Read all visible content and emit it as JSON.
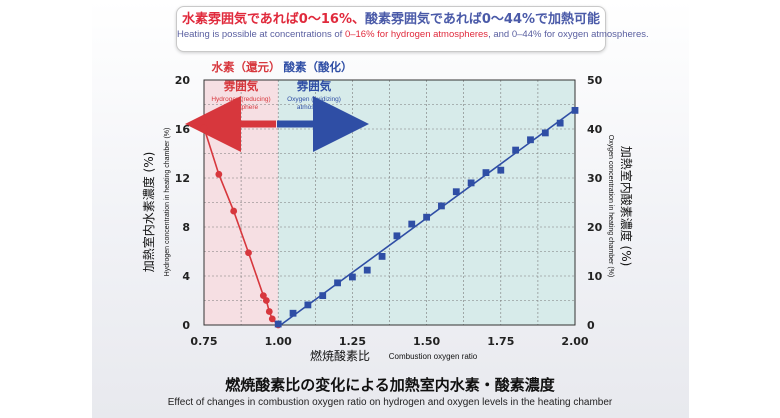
{
  "banner": {
    "line1_red": "水素雰囲気であれば0〜16%、",
    "line1_blue": "酸素雰囲気であれば0〜44%",
    "line1_tail": "で加熱可能",
    "line2_a": "Heating is possible at concentrations of ",
    "line2_b": "0–16% for hydrogen atmospheres",
    "line2_c": ", and ",
    "line2_d": "0–44% for oxygen atmospheres",
    "line2_e": "."
  },
  "footer": {
    "title_jp": "燃焼酸素比の変化による加熱室内水素・酸素濃度",
    "title_en": "Effect of changes in combustion oxygen ratio on hydrogen and oxygen levels in the heating chamber"
  },
  "colors": {
    "hydrogen": "#d7373d",
    "oxygen": "#2f4ea5",
    "hydrogen_region": "#f6dfe3",
    "oxygen_region": "#d7ebea",
    "grid": "#7a7a7a"
  },
  "chart_data": {
    "type": "scatter",
    "xlabel_jp": "燃焼酸素比",
    "xlabel_en": "Combustion oxygen ratio",
    "ylabel_left_jp": "加熱室内水素濃度 (%)",
    "ylabel_left_en": "Hydrogen concentration in heating chamber (%)",
    "ylabel_right_jp": "加熱室内酸素濃度 (%)",
    "ylabel_right_en": "Oxygen concentration in heating chamber (%)",
    "xlim": [
      0.75,
      2.0
    ],
    "ylim_left": [
      0,
      20
    ],
    "ylim_right": [
      0,
      50
    ],
    "x_ticks": [
      "0.75",
      "1.00",
      "1.25",
      "1.50",
      "1.75",
      "2.00"
    ],
    "y_left_ticks": [
      "0",
      "4",
      "8",
      "12",
      "16",
      "20"
    ],
    "y_right_ticks": [
      "0",
      "10",
      "20",
      "30",
      "40",
      "50"
    ],
    "regions": {
      "hydrogen": {
        "x_range": [
          0.75,
          1.0
        ],
        "label_jp": "水素（還元）",
        "label_jp2": "雰囲気",
        "label_en": "Hydrogen (reducing)",
        "label_en2": "atmosphere"
      },
      "oxygen": {
        "x_range": [
          1.0,
          2.0
        ],
        "label_jp": "酸素（酸化）",
        "label_jp2": "雰囲気",
        "label_en": "Oxygen (oxidizing)",
        "label_en2": "atmosphere"
      }
    },
    "series": [
      {
        "axis": "left",
        "marker": "circle",
        "x": [
          0.75,
          0.8,
          0.85,
          0.9,
          0.95,
          0.96,
          0.97,
          0.98,
          1.0
        ],
        "y": [
          16.1,
          12.3,
          9.3,
          5.9,
          2.4,
          2.0,
          1.1,
          0.5,
          0.0
        ]
      },
      {
        "axis": "right",
        "marker": "square",
        "x": [
          1.0,
          1.05,
          1.1,
          1.15,
          1.2,
          1.25,
          1.3,
          1.35,
          1.4,
          1.45,
          1.5,
          1.55,
          1.6,
          1.65,
          1.7,
          1.75,
          1.8,
          1.85,
          1.9,
          1.95,
          2.0
        ],
        "y": [
          0.2,
          2.4,
          4.1,
          6.0,
          8.6,
          9.8,
          11.2,
          14.0,
          18.2,
          20.6,
          22.0,
          24.3,
          27.2,
          29.0,
          31.1,
          31.6,
          35.7,
          37.8,
          39.2,
          41.2,
          43.8
        ]
      }
    ]
  }
}
